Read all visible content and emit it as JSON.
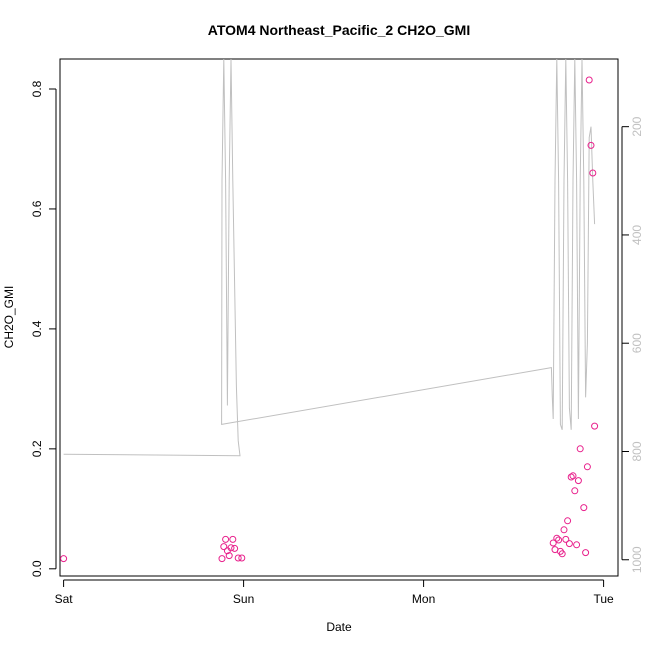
{
  "chart_data": {
    "type": "scatter",
    "title": "ATOM4 Northeast_Pacific_2 CH2O_GMI",
    "xlabel": "Date",
    "ylabel": "CH2O_GMI",
    "xlim": [
      -0.02,
      3.08
    ],
    "ylim": [
      -0.012,
      0.85
    ],
    "x_ticks": [
      0,
      1,
      2,
      3
    ],
    "x_tick_labels": [
      "Sat",
      "Sun",
      "Mon",
      "Tue"
    ],
    "y_ticks": [
      0.0,
      0.2,
      0.4,
      0.6,
      0.8
    ],
    "y_tick_labels": [
      "0.0",
      "0.2",
      "0.4",
      "0.6",
      "0.8"
    ],
    "y2_ticks": [
      200,
      400,
      600,
      800,
      1000
    ],
    "y2_tick_labels": [
      "200",
      "400",
      "600",
      "800",
      "1000"
    ],
    "y2lim": [
      1030,
      75
    ],
    "y2_reversed": true,
    "points_color": "#e8218c",
    "points": [
      {
        "x": 0.0,
        "y": 0.017
      },
      {
        "x": 0.88,
        "y": 0.017
      },
      {
        "x": 0.89,
        "y": 0.037
      },
      {
        "x": 0.9,
        "y": 0.049
      },
      {
        "x": 0.91,
        "y": 0.03
      },
      {
        "x": 0.92,
        "y": 0.022
      },
      {
        "x": 0.93,
        "y": 0.035
      },
      {
        "x": 0.94,
        "y": 0.049
      },
      {
        "x": 0.95,
        "y": 0.034
      },
      {
        "x": 0.97,
        "y": 0.018
      },
      {
        "x": 0.99,
        "y": 0.018
      },
      {
        "x": 2.72,
        "y": 0.043
      },
      {
        "x": 2.73,
        "y": 0.032
      },
      {
        "x": 2.74,
        "y": 0.051
      },
      {
        "x": 2.75,
        "y": 0.048
      },
      {
        "x": 2.76,
        "y": 0.029
      },
      {
        "x": 2.77,
        "y": 0.025
      },
      {
        "x": 2.78,
        "y": 0.065
      },
      {
        "x": 2.79,
        "y": 0.049
      },
      {
        "x": 2.8,
        "y": 0.08
      },
      {
        "x": 2.81,
        "y": 0.042
      },
      {
        "x": 2.82,
        "y": 0.153
      },
      {
        "x": 2.83,
        "y": 0.155
      },
      {
        "x": 2.84,
        "y": 0.13
      },
      {
        "x": 2.85,
        "y": 0.04
      },
      {
        "x": 2.86,
        "y": 0.147
      },
      {
        "x": 2.87,
        "y": 0.2
      },
      {
        "x": 2.89,
        "y": 0.102
      },
      {
        "x": 2.9,
        "y": 0.027
      },
      {
        "x": 2.91,
        "y": 0.17
      },
      {
        "x": 2.92,
        "y": 0.815
      },
      {
        "x": 2.93,
        "y": 0.706
      },
      {
        "x": 2.94,
        "y": 0.66
      },
      {
        "x": 2.95,
        "y": 0.238
      }
    ],
    "line_color": "#c0c0c0",
    "line": [
      {
        "x": 0.0,
        "y2": 805
      },
      {
        "x": 0.98,
        "y2": 808
      },
      {
        "x": 0.97,
        "y2": 780
      },
      {
        "x": 0.96,
        "y2": 680
      },
      {
        "x": 0.94,
        "y2": 300
      },
      {
        "x": 0.93,
        "y2": 70
      },
      {
        "x": 0.92,
        "y2": 300
      },
      {
        "x": 0.91,
        "y2": 715
      },
      {
        "x": 0.9,
        "y2": 300
      },
      {
        "x": 0.89,
        "y2": 70
      },
      {
        "x": 0.88,
        "y2": 300
      },
      {
        "x": 0.878,
        "y2": 750
      },
      {
        "x": 2.71,
        "y2": 645
      },
      {
        "x": 2.715,
        "y2": 700
      },
      {
        "x": 2.72,
        "y2": 740
      },
      {
        "x": 2.73,
        "y2": 300
      },
      {
        "x": 2.74,
        "y2": 70
      },
      {
        "x": 2.75,
        "y2": 300
      },
      {
        "x": 2.76,
        "y2": 750
      },
      {
        "x": 2.77,
        "y2": 760
      },
      {
        "x": 2.78,
        "y2": 300
      },
      {
        "x": 2.79,
        "y2": 70
      },
      {
        "x": 2.8,
        "y2": 300
      },
      {
        "x": 2.81,
        "y2": 720
      },
      {
        "x": 2.82,
        "y2": 760
      },
      {
        "x": 2.83,
        "y2": 300
      },
      {
        "x": 2.84,
        "y2": 70
      },
      {
        "x": 2.85,
        "y2": 300
      },
      {
        "x": 2.86,
        "y2": 740
      },
      {
        "x": 2.87,
        "y2": 300
      },
      {
        "x": 2.88,
        "y2": 70
      },
      {
        "x": 2.89,
        "y2": 300
      },
      {
        "x": 2.9,
        "y2": 700
      },
      {
        "x": 2.91,
        "y2": 600
      },
      {
        "x": 2.92,
        "y2": 220
      },
      {
        "x": 2.93,
        "y2": 200
      },
      {
        "x": 2.94,
        "y2": 300
      },
      {
        "x": 2.95,
        "y2": 380
      }
    ]
  }
}
